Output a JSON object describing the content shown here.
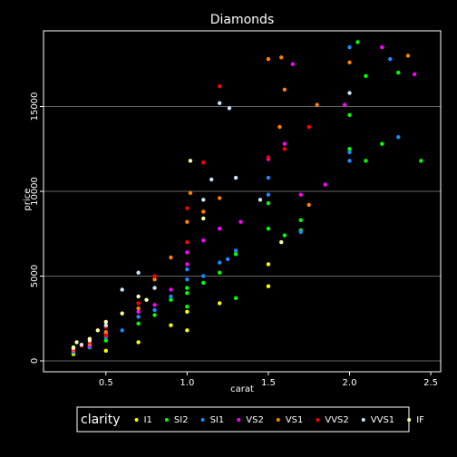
{
  "chart_data": {
    "type": "scatter",
    "title": "Diamonds",
    "x_label": "carat",
    "y_label": "price",
    "legend_title": "clarity",
    "legend_position": "bottom",
    "grid": true,
    "xlim": [
      0.116,
      2.561
    ],
    "ylim": [
      -642,
      19465
    ],
    "xticks": [
      0.5,
      {
        "value": 1,
        "label": "1.0"
      },
      1.5,
      {
        "value": 2,
        "label": "2.0"
      },
      2.5
    ],
    "yticks": [
      0,
      5000,
      10000,
      15000
    ],
    "series": [
      {
        "name": "I1",
        "color": "#ffff00",
        "x": [
          0.9,
          1.0,
          1.0,
          0.7,
          1.5,
          1.5,
          1.2,
          0.5,
          0.3
        ],
        "values": [
          2100,
          2900,
          1800,
          1100,
          4400,
          5700,
          3400,
          600,
          400
        ]
      },
      {
        "name": "SI2",
        "color": "#00ff00",
        "x": [
          1.0,
          1.0,
          1.1,
          1.2,
          1.3,
          1.3,
          1.5,
          1.5,
          1.6,
          1.7,
          1.7,
          2.0,
          2.0,
          2.1,
          2.1,
          2.2,
          2.3,
          2.44,
          0.9,
          0.8,
          0.7,
          0.5,
          0.4,
          0.3,
          2.05,
          1.0
        ],
        "values": [
          4000,
          4300,
          4600,
          5200,
          6300,
          3700,
          7800,
          9300,
          7400,
          8300,
          7700,
          14500,
          12500,
          11800,
          16800,
          12800,
          17000,
          11800,
          3600,
          2700,
          2200,
          1200,
          800,
          500,
          18800,
          3200
        ]
      },
      {
        "name": "SI1",
        "color": "#1a8cff",
        "x": [
          0.3,
          0.4,
          0.5,
          0.6,
          0.7,
          0.8,
          0.9,
          1.0,
          1.0,
          1.1,
          1.2,
          1.3,
          1.5,
          1.5,
          1.7,
          2.0,
          2.0,
          2.3,
          2.25,
          2.0,
          1.25
        ],
        "values": [
          550,
          800,
          1400,
          1800,
          2600,
          3000,
          3800,
          4800,
          5400,
          5000,
          5800,
          6500,
          9800,
          10800,
          7600,
          12300,
          18500,
          13200,
          17800,
          11800,
          6000
        ]
      },
      {
        "name": "VS2",
        "color": "#ff00ff",
        "x": [
          0.3,
          0.4,
          0.5,
          0.7,
          0.8,
          0.9,
          1.0,
          1.0,
          1.1,
          1.2,
          1.5,
          1.6,
          1.65,
          1.7,
          1.85,
          1.97,
          2.2,
          2.4,
          1.33
        ],
        "values": [
          600,
          900,
          1600,
          2900,
          3300,
          4200,
          5700,
          6400,
          7100,
          7800,
          11900,
          12800,
          17500,
          9800,
          10400,
          15100,
          18500,
          16900,
          8200
        ]
      },
      {
        "name": "VS1",
        "color": "#ff8000",
        "x": [
          0.3,
          0.4,
          0.5,
          0.7,
          0.8,
          0.9,
          1.0,
          1.02,
          1.1,
          1.2,
          1.5,
          1.58,
          1.6,
          1.75,
          1.8,
          2.0,
          2.36,
          1.57
        ],
        "values": [
          650,
          1000,
          1700,
          3100,
          4800,
          6100,
          8200,
          9900,
          8800,
          9600,
          17800,
          17900,
          16000,
          9200,
          15100,
          17600,
          18000,
          13800
        ]
      },
      {
        "name": "VVS2",
        "color": "#ff0000",
        "x": [
          0.3,
          0.4,
          0.5,
          0.7,
          0.8,
          1.0,
          1.0,
          1.1,
          1.2,
          1.5,
          1.75,
          1.6,
          0.5,
          0.35
        ],
        "values": [
          700,
          1100,
          2000,
          3400,
          5000,
          7000,
          9000,
          11700,
          16200,
          12000,
          13800,
          12500,
          1500,
          900
        ]
      },
      {
        "name": "VVS1",
        "color": "#cce6ff",
        "x": [
          0.3,
          0.4,
          0.5,
          0.6,
          0.7,
          0.8,
          1.1,
          1.2,
          1.26,
          1.3,
          1.15,
          2.0,
          1.45,
          0.35
        ],
        "values": [
          750,
          1200,
          2100,
          4200,
          5200,
          4300,
          9500,
          15200,
          14900,
          10800,
          10700,
          15800,
          9500,
          950
        ]
      },
      {
        "name": "IF",
        "color": "#ffffa0",
        "x": [
          0.3,
          0.4,
          0.5,
          0.6,
          0.7,
          1.02,
          1.1,
          0.32,
          0.45,
          1.58,
          0.75
        ],
        "values": [
          800,
          1300,
          2300,
          2800,
          3800,
          11800,
          8400,
          1100,
          1800,
          7000,
          3600
        ]
      }
    ]
  }
}
